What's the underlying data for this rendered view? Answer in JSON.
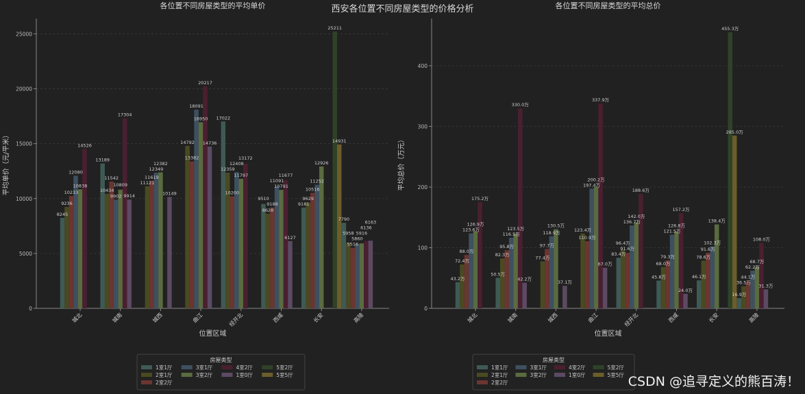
{
  "suptitle": "西安各位置不同房屋类型的价格分析",
  "watermark": "CSDN @追寻定义的熊百涛！",
  "colors": {
    "background": "#212121",
    "series": [
      "#3f5a55",
      "#4a4a22",
      "#6b3530",
      "#3e5060",
      "#5a6b40",
      "#4a1f30",
      "#5c4a63",
      "#2f4228",
      "#6b5e2a"
    ]
  },
  "chart_data": [
    {
      "type": "bar",
      "title": "各位置不同房屋类型的平均单价",
      "xlabel": "位置区域",
      "ylabel": "平均单价（元/平米）",
      "ylim": [
        0,
        26400
      ],
      "yticks": [
        0,
        5000,
        10000,
        15000,
        20000,
        25000
      ],
      "grid": true,
      "legend_title": "房屋类型",
      "legend_placement": "bottom-center",
      "label_suffix": "",
      "categories": [
        "城北",
        "城南",
        "城西",
        "曲江",
        "经开北",
        "西咸",
        "长安",
        "高陵"
      ],
      "series": [
        {
          "name": "1室1厅",
          "values": [
            8245,
            13189,
            null,
            null,
            17022,
            9510,
            9181,
            7790
          ]
        },
        {
          "name": "2室1厅",
          "values": [
            9236,
            10434,
            11121,
            14792,
            12359,
            8628,
            9629,
            5958
          ]
        },
        {
          "name": "2室2厅",
          "values": [
            10233,
            11542,
            11619,
            13382,
            10200,
            9188,
            10516,
            5516
          ]
        },
        {
          "name": "3室1厅",
          "values": [
            12080,
            9902,
            12349,
            18091,
            12408,
            11091,
            11252,
            5860
          ]
        },
        {
          "name": "3室2厅",
          "values": [
            10838,
            10809,
            12382,
            16950,
            11797,
            10791,
            12926,
            5916
          ]
        },
        {
          "name": "4室2厅",
          "values": [
            14526,
            17304,
            null,
            20217,
            13172,
            11677,
            null,
            6136
          ]
        },
        {
          "name": "1室0厅",
          "values": [
            null,
            9914,
            10149,
            14736,
            null,
            6127,
            null,
            6163
          ]
        },
        {
          "name": "5室2厅",
          "values": [
            null,
            null,
            null,
            null,
            null,
            null,
            25211,
            null
          ]
        },
        {
          "name": "5室5厅",
          "values": [
            null,
            null,
            null,
            null,
            null,
            null,
            14931,
            null
          ]
        }
      ]
    },
    {
      "type": "bar",
      "title": "各位置不同房屋类型的平均总价",
      "xlabel": "位置区域",
      "ylabel": "平均总价（万元）",
      "ylim": [
        0,
        478
      ],
      "yticks": [
        0,
        100,
        200,
        300,
        400
      ],
      "grid": true,
      "legend_title": "房屋类型",
      "legend_placement": "bottom-center",
      "label_suffix": "万",
      "categories": [
        "城北",
        "城南",
        "城西",
        "曲江",
        "经开北",
        "西咸",
        "长安",
        "高陵"
      ],
      "series": [
        {
          "name": "1室1厅",
          "values": [
            43.2,
            50.5,
            null,
            null,
            83.4,
            45.8,
            46.1,
            16.9
          ]
        },
        {
          "name": "2室1厅",
          "values": [
            72.4,
            82.3,
            77.4,
            123.4,
            96.4,
            68.0,
            78.6,
            36.5
          ]
        },
        {
          "name": "2室2厅",
          "values": [
            88.0,
            95.8,
            97.7,
            110.9,
            91.6,
            79.3,
            91.6,
            44.1
          ]
        },
        {
          "name": "3室1厅",
          "values": [
            123.6,
            116.5,
            118.9,
            197.4,
            136.7,
            121.5,
            102.3,
            62.2
          ]
        },
        {
          "name": "3室2厅",
          "values": [
            126.9,
            123.5,
            130.5,
            200.2,
            142.0,
            126.8,
            138.4,
            68.7
          ]
        },
        {
          "name": "4室2厅",
          "values": [
            175.2,
            330.0,
            null,
            337.9,
            188.6,
            157.2,
            null,
            108.0
          ]
        },
        {
          "name": "1室0厅",
          "values": [
            null,
            42.2,
            37.1,
            67.0,
            null,
            24.0,
            null,
            31.3
          ]
        },
        {
          "name": "5室2厅",
          "values": [
            null,
            null,
            null,
            null,
            null,
            null,
            455.3,
            null
          ]
        },
        {
          "name": "5室5厅",
          "values": [
            null,
            null,
            null,
            null,
            null,
            null,
            285.0,
            null
          ]
        }
      ]
    }
  ]
}
